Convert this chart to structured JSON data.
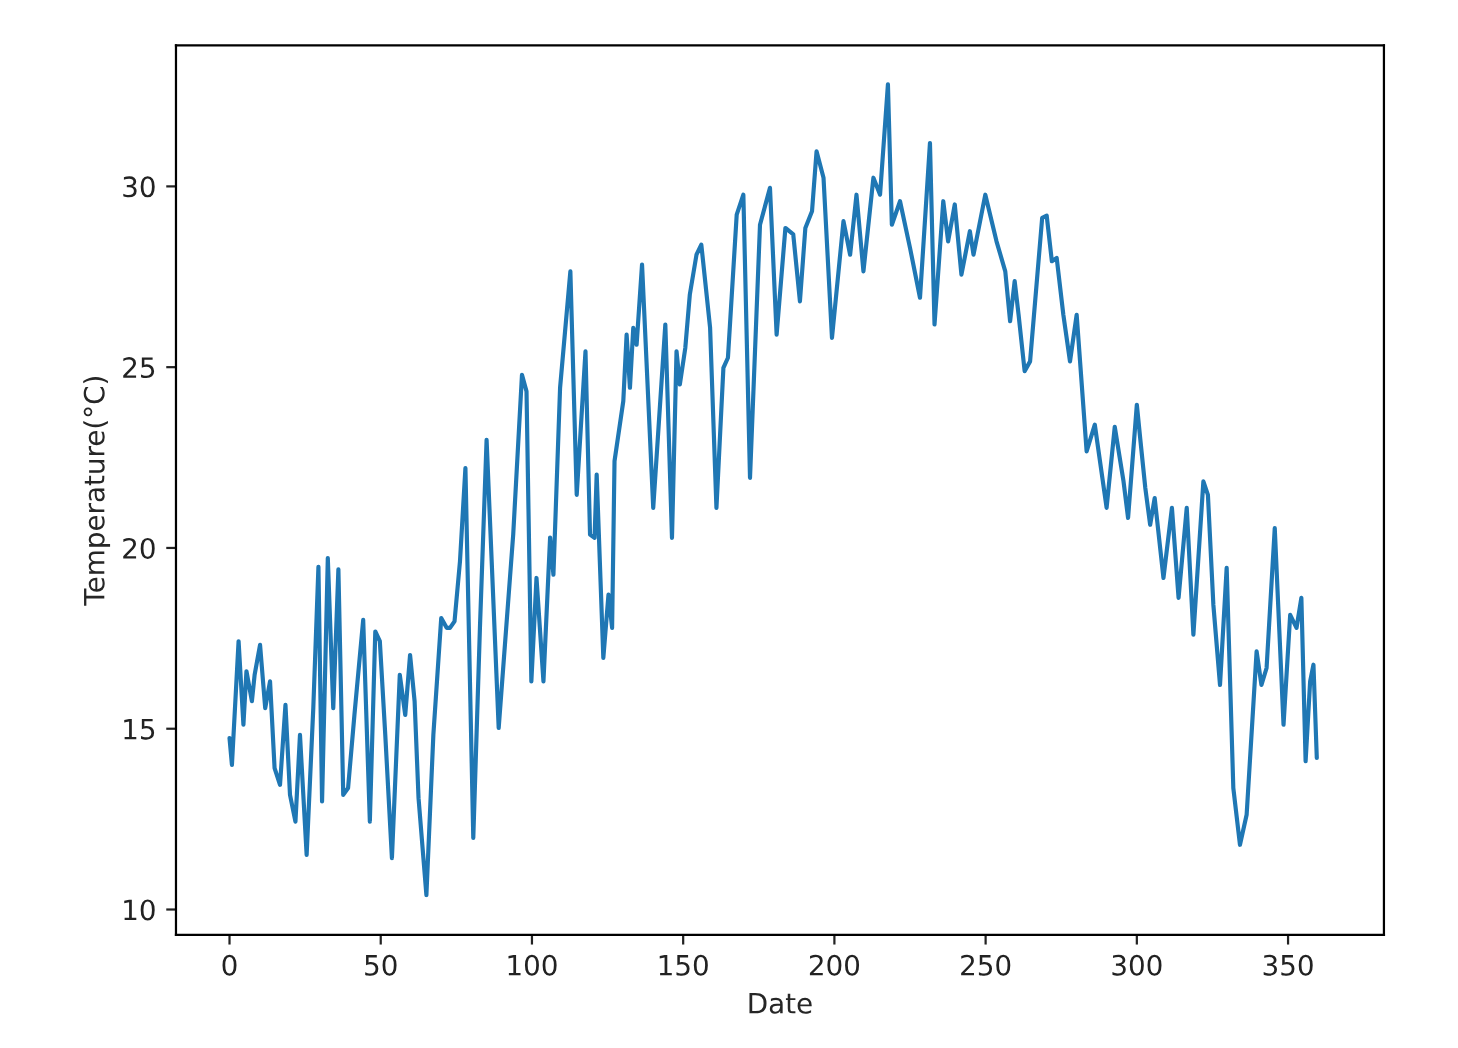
{
  "chart_data": {
    "type": "line",
    "xlabel": "Date",
    "ylabel": "Temperature(°C)",
    "xlim": [
      -17.7,
      381.7
    ],
    "xticks": [
      0,
      50,
      100,
      150,
      200,
      250,
      300,
      350
    ],
    "ylim": [
      9.3,
      33.9
    ],
    "yticks": [
      10,
      15,
      20,
      25,
      30
    ],
    "grid": false,
    "legend": false,
    "marker": "none",
    "line_style": "solid",
    "series": [
      {
        "color": "#1f77b4",
        "x": [
          0,
          0.8,
          3.0,
          4.6,
          5.6,
          7.4,
          8.3,
          10.1,
          11.8,
          13.4,
          14.9,
          16.7,
          18.5,
          20.0,
          21.8,
          23.3,
          25.5,
          27.7,
          29.4,
          30.6,
          32.5,
          34.3,
          36.0,
          37.6,
          39.2,
          41.3,
          44.2,
          46.4,
          48.2,
          49.7,
          51.5,
          53.7,
          56.3,
          58.1,
          59.7,
          61.2,
          62.5,
          65.1,
          67.4,
          70.0,
          71.8,
          72.9,
          74.4,
          76.2,
          78.0,
          80.6,
          82.8,
          85.0,
          89.0,
          93.8,
          96.7,
          98.2,
          99.8,
          101.5,
          103.8,
          106.0,
          107.1,
          109.3,
          112.7,
          114.8,
          117.7,
          119.2,
          120.7,
          121.4,
          123.6,
          125.3,
          126.5,
          127.3,
          130.2,
          131.3,
          132.4,
          133.5,
          134.6,
          136.4,
          140.1,
          144.1,
          146.3,
          147.8,
          148.9,
          150.7,
          152.2,
          154.4,
          156.0,
          158.9,
          161.0,
          163.3,
          164.8,
          167.7,
          169.9,
          172.1,
          175.4,
          178.7,
          180.9,
          183.8,
          186.4,
          188.6,
          190.4,
          192.6,
          194.1,
          196.4,
          199.2,
          203.0,
          205.2,
          207.3,
          209.6,
          212.9,
          215.1,
          217.7,
          219.0,
          221.7,
          225.0,
          228.3,
          231.6,
          233.1,
          236.0,
          237.6,
          239.8,
          242.0,
          244.8,
          246.0,
          249.9,
          253.6,
          256.5,
          258.1,
          259.6,
          260.9,
          262.9,
          264.7,
          268.7,
          270.2,
          271.9,
          273.5,
          275.7,
          277.9,
          280.1,
          283.4,
          286.1,
          290.0,
          292.7,
          295.6,
          297.1,
          300.0,
          301.1,
          302.8,
          304.4,
          305.9,
          308.8,
          311.6,
          313.8,
          316.5,
          318.7,
          322.0,
          323.5,
          325.3,
          327.5,
          329.7,
          331.9,
          334.1,
          336.3,
          339.6,
          341.2,
          342.9,
          345.6,
          348.5,
          350.7,
          352.8,
          354.4,
          355.8,
          357.3,
          358.4,
          359.5
        ],
        "values": [
          14.74,
          14.0,
          17.42,
          15.11,
          16.59,
          15.76,
          16.49,
          17.32,
          15.57,
          16.31,
          13.91,
          13.45,
          15.66,
          13.17,
          12.43,
          14.83,
          11.51,
          15.57,
          19.48,
          12.99,
          19.72,
          15.57,
          19.41,
          13.17,
          13.36,
          15.38,
          18.01,
          12.43,
          17.69,
          17.42,
          14.83,
          11.42,
          16.49,
          15.38,
          17.04,
          15.76,
          13.08,
          10.4,
          14.83,
          18.06,
          17.79,
          17.79,
          17.97,
          19.63,
          22.21,
          11.98,
          17.79,
          22.99,
          15.02,
          20.37,
          24.79,
          24.33,
          16.31,
          19.17,
          16.31,
          20.29,
          19.26,
          24.43,
          27.65,
          21.47,
          25.44,
          20.37,
          20.28,
          22.03,
          16.96,
          18.71,
          17.79,
          22.4,
          24.06,
          25.9,
          24.43,
          26.09,
          25.62,
          27.84,
          21.11,
          26.18,
          20.28,
          25.44,
          24.52,
          25.53,
          27.01,
          28.11,
          28.39,
          26.09,
          21.11,
          24.98,
          25.26,
          29.22,
          29.77,
          21.94,
          28.94,
          29.96,
          25.9,
          28.85,
          28.67,
          26.82,
          28.85,
          29.31,
          30.97,
          30.24,
          25.81,
          29.04,
          28.11,
          29.77,
          27.65,
          30.24,
          29.77,
          32.82,
          28.94,
          29.59,
          28.3,
          26.92,
          31.2,
          26.18,
          29.59,
          28.48,
          29.5,
          27.56,
          28.76,
          28.11,
          29.77,
          28.48,
          27.65,
          26.27,
          27.38,
          26.45,
          24.89,
          25.16,
          29.13,
          29.19,
          27.93,
          28.02,
          26.45,
          25.16,
          26.45,
          22.67,
          23.41,
          21.11,
          23.35,
          21.84,
          20.83,
          23.96,
          23.04,
          21.66,
          20.64,
          21.38,
          19.17,
          21.11,
          18.62,
          21.11,
          17.6,
          21.84,
          21.47,
          18.43,
          16.21,
          19.45,
          13.36,
          11.79,
          12.62,
          17.14,
          16.21,
          16.68,
          20.55,
          15.11,
          18.15,
          17.79,
          18.62,
          14.1,
          16.31,
          16.77,
          14.19
        ]
      }
    ]
  }
}
